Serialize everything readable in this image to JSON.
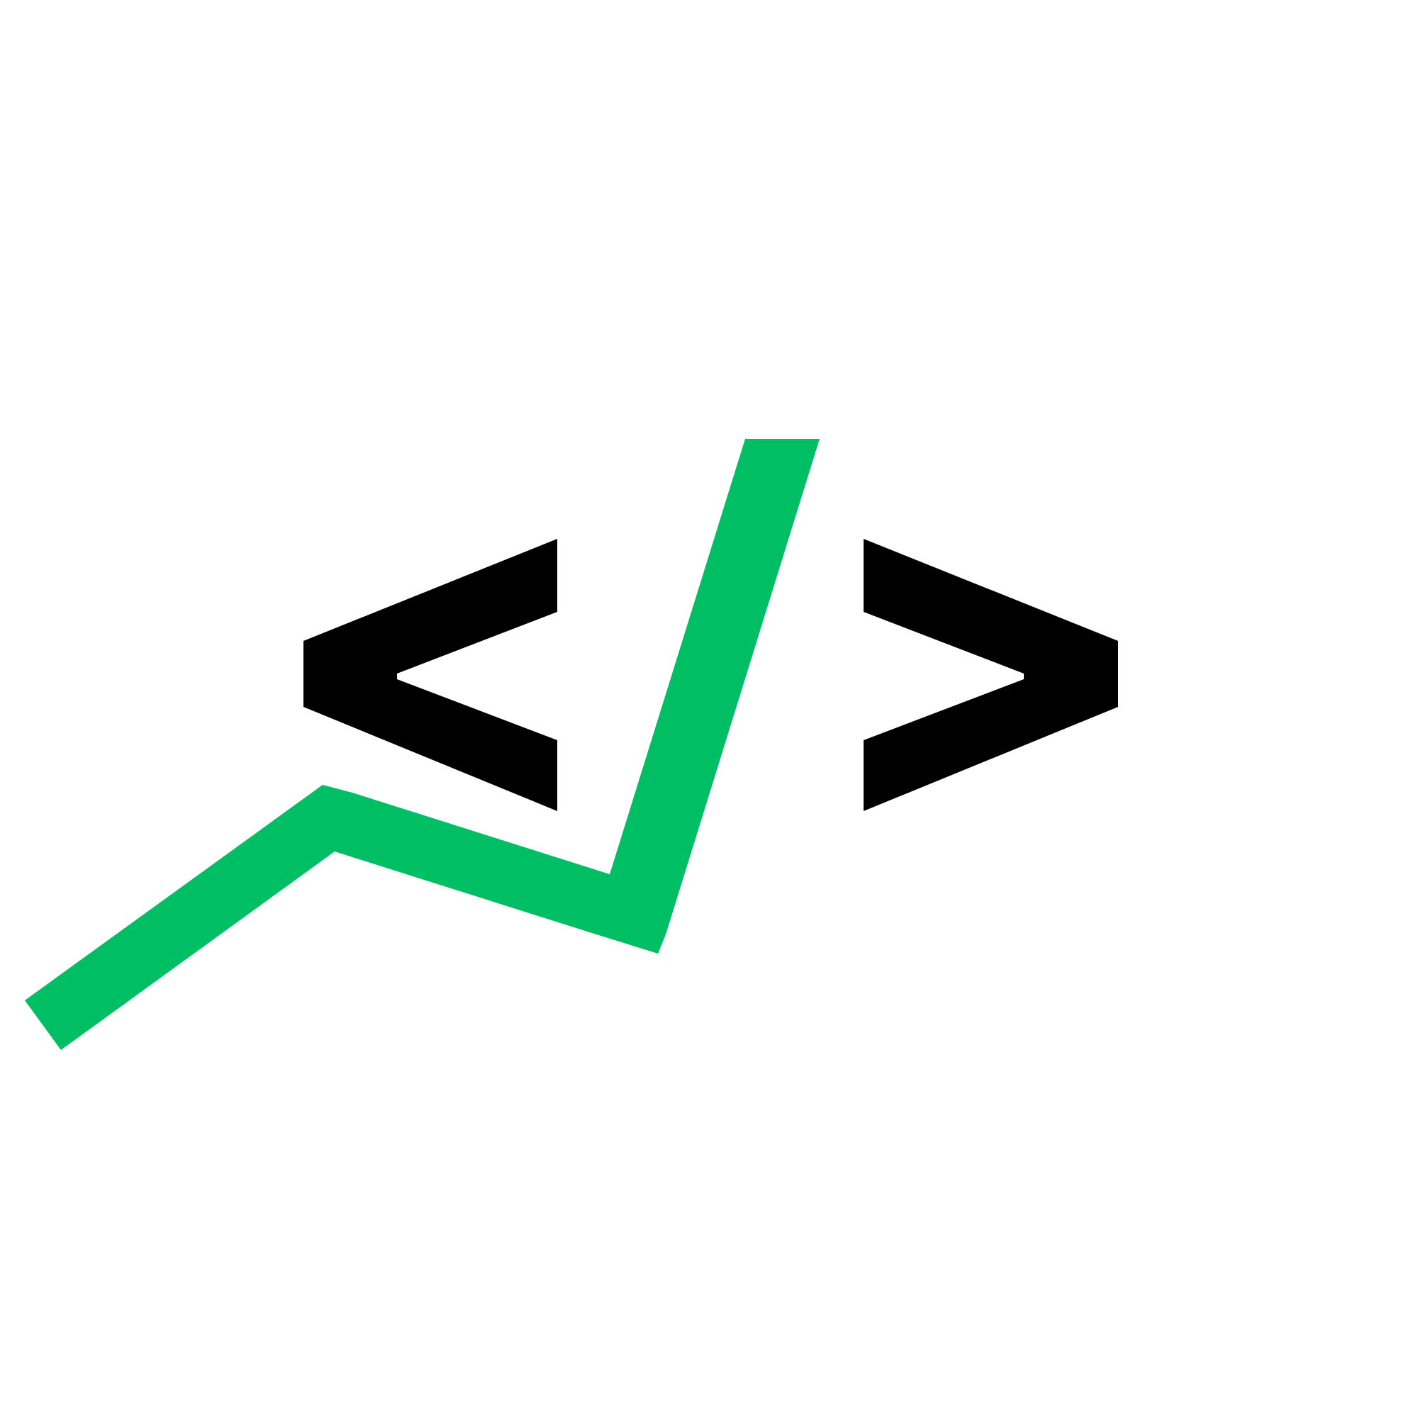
{
  "logo": {
    "name": "code-chart-logo",
    "colors": {
      "background": "#ffffff",
      "brackets": "#000000",
      "accent": "#00BE64"
    },
    "icons": {
      "left_bracket": "left-angle-bracket-icon",
      "right_bracket": "right-angle-bracket-icon",
      "slash_trend_line": "green-trend-line-slash-icon"
    }
  }
}
